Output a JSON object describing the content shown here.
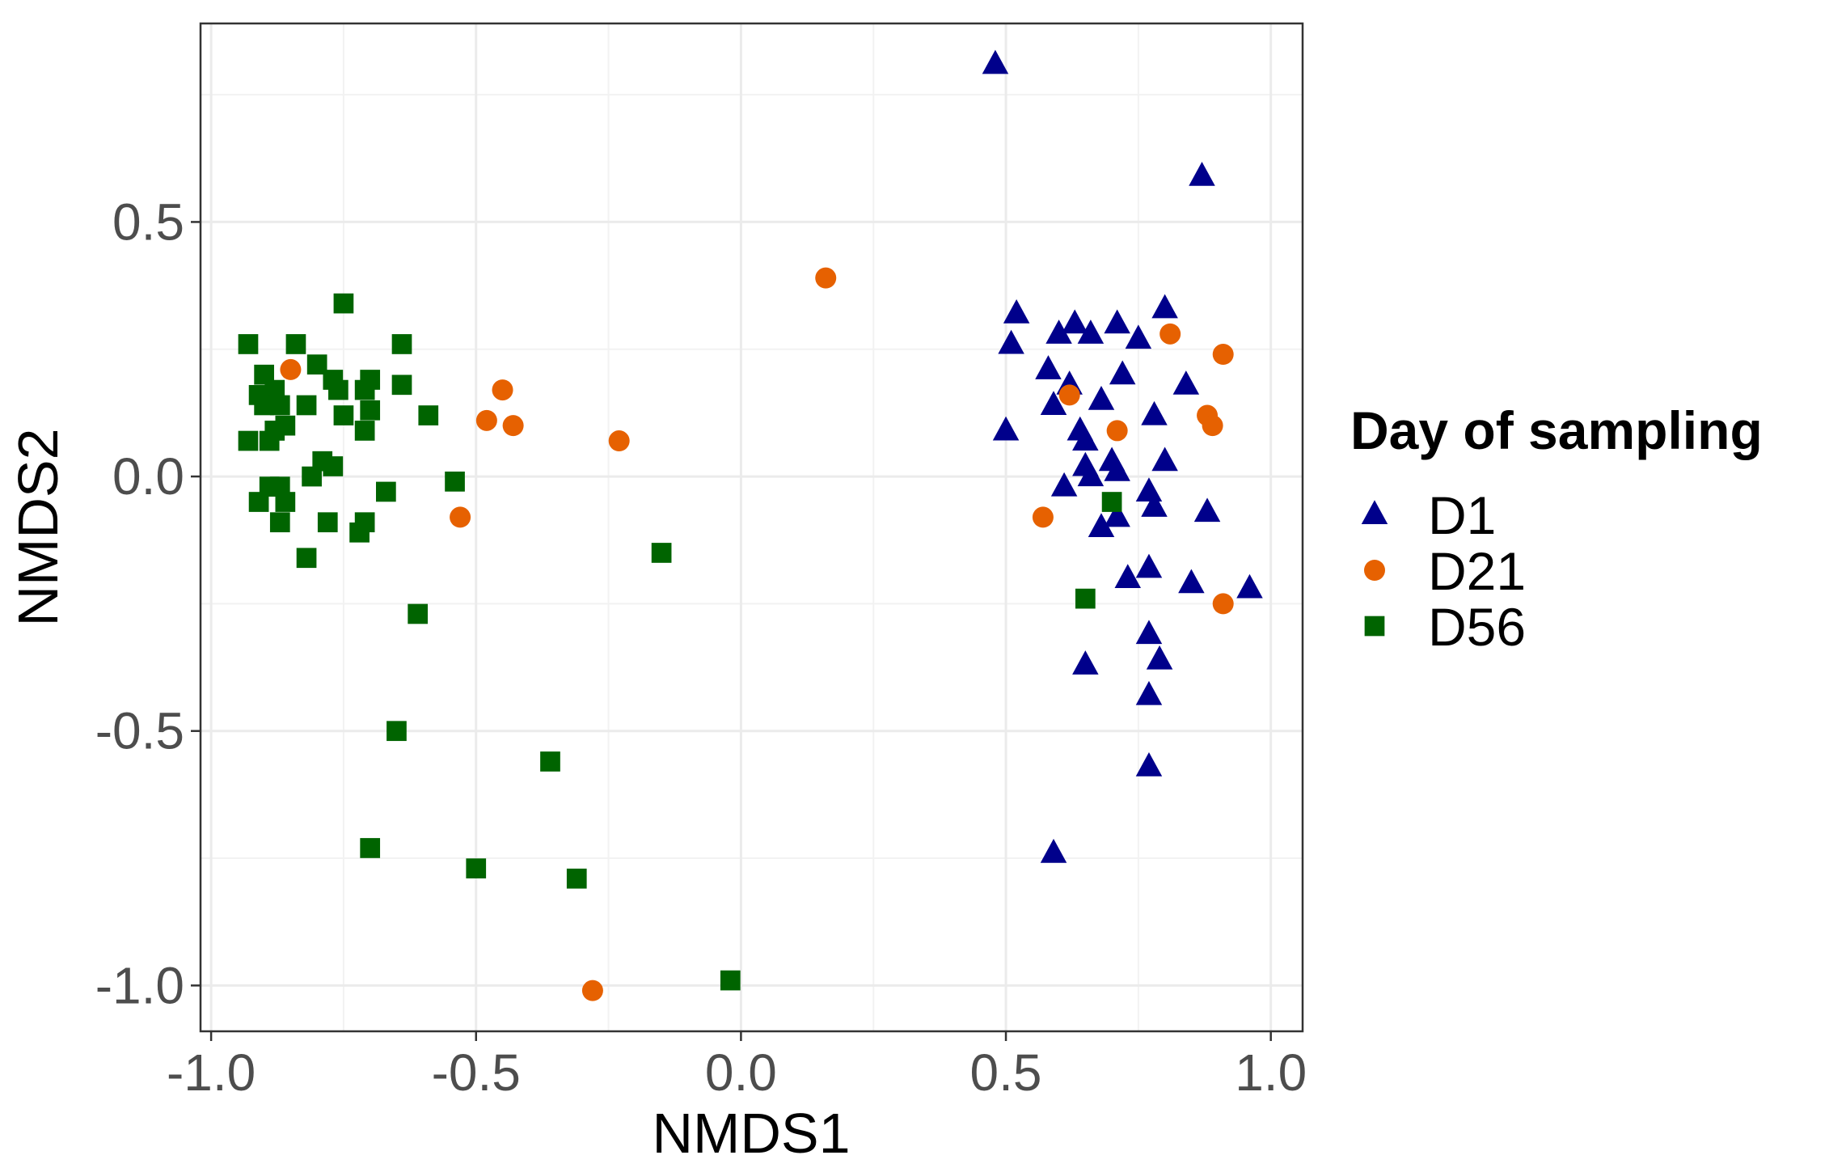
{
  "chart_data": {
    "type": "scatter",
    "title": "",
    "xlabel": "NMDS1",
    "ylabel": "NMDS2",
    "xlim": [
      -1.02,
      1.06
    ],
    "ylim": [
      -1.09,
      0.89
    ],
    "x_ticks": [
      -1.0,
      -0.5,
      0.0,
      0.5,
      1.0
    ],
    "x_tick_labels": [
      "-1.0",
      "-0.5",
      "0.0",
      "0.5",
      "1.0"
    ],
    "y_ticks": [
      -1.0,
      -0.5,
      0.0,
      0.5
    ],
    "y_tick_labels": [
      "-1.0",
      "-0.5",
      "0.0",
      "0.5"
    ],
    "grid": true,
    "legend": {
      "title": "Day of sampling",
      "position": "right"
    },
    "series": [
      {
        "name": "D1",
        "marker": "triangle",
        "color": "#00008b",
        "points": [
          [
            0.48,
            0.81
          ],
          [
            0.87,
            0.59
          ],
          [
            0.52,
            0.32
          ],
          [
            0.51,
            0.26
          ],
          [
            0.6,
            0.28
          ],
          [
            0.63,
            0.3
          ],
          [
            0.66,
            0.28
          ],
          [
            0.71,
            0.3
          ],
          [
            0.75,
            0.27
          ],
          [
            0.8,
            0.33
          ],
          [
            0.58,
            0.21
          ],
          [
            0.62,
            0.18
          ],
          [
            0.72,
            0.2
          ],
          [
            0.84,
            0.18
          ],
          [
            0.59,
            0.14
          ],
          [
            0.68,
            0.15
          ],
          [
            0.78,
            0.12
          ],
          [
            0.5,
            0.09
          ],
          [
            0.64,
            0.09
          ],
          [
            0.65,
            0.07
          ],
          [
            0.7,
            0.03
          ],
          [
            0.8,
            0.03
          ],
          [
            0.65,
            0.02
          ],
          [
            0.71,
            0.01
          ],
          [
            0.66,
            0.0
          ],
          [
            0.61,
            -0.02
          ],
          [
            0.77,
            -0.03
          ],
          [
            0.78,
            -0.06
          ],
          [
            0.88,
            -0.07
          ],
          [
            0.71,
            -0.08
          ],
          [
            0.68,
            -0.1
          ],
          [
            0.77,
            -0.18
          ],
          [
            0.73,
            -0.2
          ],
          [
            0.85,
            -0.21
          ],
          [
            0.96,
            -0.22
          ],
          [
            0.77,
            -0.31
          ],
          [
            0.79,
            -0.36
          ],
          [
            0.65,
            -0.37
          ],
          [
            0.77,
            -0.43
          ],
          [
            0.77,
            -0.57
          ],
          [
            0.59,
            -0.74
          ]
        ]
      },
      {
        "name": "D21",
        "marker": "circle",
        "color": "#e66101",
        "points": [
          [
            0.16,
            0.39
          ],
          [
            -0.85,
            0.21
          ],
          [
            -0.45,
            0.17
          ],
          [
            -0.48,
            0.11
          ],
          [
            -0.43,
            0.1
          ],
          [
            -0.23,
            0.07
          ],
          [
            -0.53,
            -0.08
          ],
          [
            0.81,
            0.28
          ],
          [
            0.91,
            0.24
          ],
          [
            0.62,
            0.16
          ],
          [
            0.88,
            0.12
          ],
          [
            0.89,
            0.1
          ],
          [
            0.71,
            0.09
          ],
          [
            0.57,
            -0.08
          ],
          [
            0.91,
            -0.25
          ],
          [
            -0.28,
            -1.01
          ]
        ]
      },
      {
        "name": "D56",
        "marker": "square",
        "color": "#006400",
        "points": [
          [
            -0.75,
            0.34
          ],
          [
            -0.93,
            0.26
          ],
          [
            -0.84,
            0.26
          ],
          [
            -0.64,
            0.26
          ],
          [
            -0.8,
            0.22
          ],
          [
            -0.9,
            0.2
          ],
          [
            -0.77,
            0.19
          ],
          [
            -0.7,
            0.19
          ],
          [
            -0.88,
            0.17
          ],
          [
            -0.76,
            0.17
          ],
          [
            -0.64,
            0.18
          ],
          [
            -0.71,
            0.17
          ],
          [
            -0.91,
            0.16
          ],
          [
            -0.9,
            0.14
          ],
          [
            -0.87,
            0.14
          ],
          [
            -0.82,
            0.14
          ],
          [
            -0.75,
            0.12
          ],
          [
            -0.7,
            0.13
          ],
          [
            -0.59,
            0.12
          ],
          [
            -0.86,
            0.1
          ],
          [
            -0.88,
            0.09
          ],
          [
            -0.71,
            0.09
          ],
          [
            -0.93,
            0.07
          ],
          [
            -0.89,
            0.07
          ],
          [
            -0.79,
            0.03
          ],
          [
            -0.77,
            0.02
          ],
          [
            -0.81,
            0.0
          ],
          [
            -0.54,
            -0.01
          ],
          [
            -0.89,
            -0.02
          ],
          [
            -0.87,
            -0.02
          ],
          [
            -0.67,
            -0.03
          ],
          [
            -0.91,
            -0.05
          ],
          [
            -0.86,
            -0.05
          ],
          [
            -0.78,
            -0.09
          ],
          [
            -0.71,
            -0.09
          ],
          [
            -0.87,
            -0.09
          ],
          [
            -0.72,
            -0.11
          ],
          [
            -0.82,
            -0.16
          ],
          [
            -0.15,
            -0.15
          ],
          [
            -0.61,
            -0.27
          ],
          [
            -0.65,
            -0.5
          ],
          [
            -0.36,
            -0.56
          ],
          [
            -0.7,
            -0.73
          ],
          [
            -0.5,
            -0.77
          ],
          [
            -0.31,
            -0.79
          ],
          [
            -0.02,
            -0.99
          ],
          [
            0.7,
            -0.05
          ],
          [
            0.65,
            -0.24
          ]
        ]
      }
    ]
  }
}
